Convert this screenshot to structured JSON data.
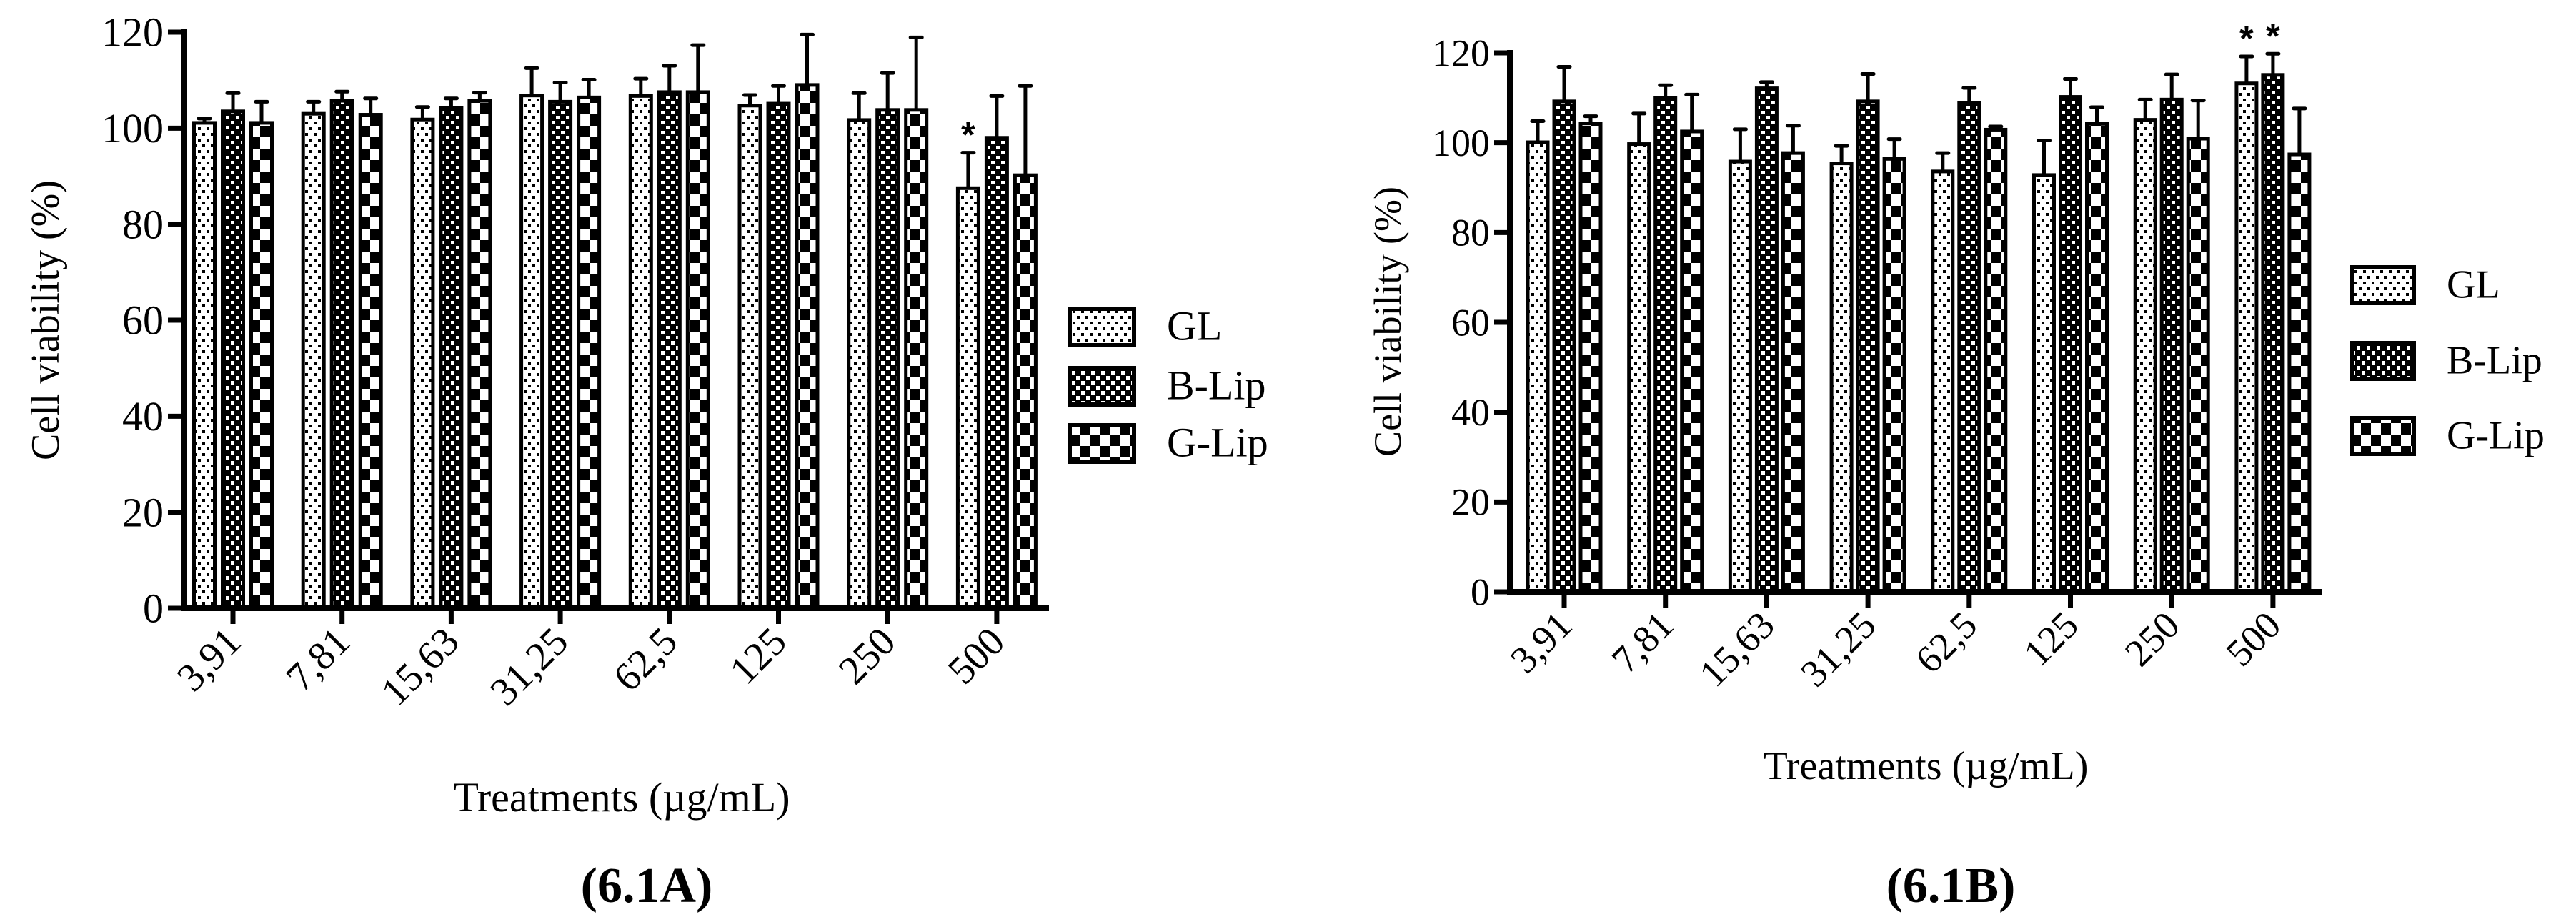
{
  "figure": {
    "panels": [
      "6.1A",
      "6.1B"
    ]
  },
  "chart_data": [
    {
      "id": "6.1A",
      "type": "bar",
      "title": "(6.1A)",
      "xlabel": "Treatments (µg/mL)",
      "ylabel": "Cell viability (%)",
      "ylim": [
        0,
        120
      ],
      "yticks": [
        0,
        20,
        40,
        60,
        80,
        100,
        120
      ],
      "grid": false,
      "legend_position": "right",
      "categories": [
        "3,91",
        "7,81",
        "15,63",
        "31,25",
        "62,5",
        "125",
        "250",
        "500"
      ],
      "series": [
        {
          "name": "GL",
          "pattern": "dots",
          "values": [
            101.1,
            103.0,
            101.8,
            106.8,
            106.7,
            104.7,
            101.7,
            87.5
          ],
          "error_upper": [
            102.0,
            105.5,
            104.4,
            112.5,
            110.3,
            106.9,
            107.3,
            94.9
          ]
        },
        {
          "name": "B-Lip",
          "pattern": "fine-checker",
          "values": [
            103.5,
            105.7,
            104.2,
            105.5,
            107.5,
            105.1,
            103.8,
            98.0
          ],
          "error_upper": [
            107.3,
            107.6,
            106.2,
            109.5,
            113.0,
            108.8,
            111.5,
            106.7
          ]
        },
        {
          "name": "G-Lip",
          "pattern": "coarse-checker",
          "values": [
            101.1,
            102.8,
            105.7,
            106.4,
            107.5,
            109.0,
            103.8,
            90.2
          ],
          "error_upper": [
            105.5,
            106.2,
            107.4,
            110.1,
            117.3,
            119.5,
            118.9,
            108.8
          ]
        }
      ],
      "annotations": [
        {
          "text": "*",
          "category": "500",
          "series": "GL"
        }
      ]
    },
    {
      "id": "6.1B",
      "type": "bar",
      "title": "(6.1B)",
      "xlabel": "Treatments (µg/mL)",
      "ylabel": "Cell viability (%)",
      "ylim": [
        0,
        120
      ],
      "yticks": [
        0,
        20,
        40,
        60,
        80,
        100,
        120
      ],
      "grid": false,
      "legend_position": "right",
      "categories": [
        "3,91",
        "7,81",
        "15,63",
        "31,25",
        "62,5",
        "125",
        "250",
        "500"
      ],
      "series": [
        {
          "name": "GL",
          "pattern": "dots",
          "values": [
            100.1,
            99.7,
            95.8,
            95.4,
            93.6,
            92.8,
            105.1,
            113.2
          ],
          "error_upper": [
            104.8,
            106.5,
            103.0,
            99.3,
            97.7,
            100.5,
            109.6,
            119.2
          ]
        },
        {
          "name": "B-Lip",
          "pattern": "fine-checker",
          "values": [
            109.2,
            109.9,
            112.1,
            109.2,
            108.9,
            110.2,
            109.6,
            115.1
          ],
          "error_upper": [
            116.9,
            112.8,
            113.5,
            115.3,
            112.2,
            114.2,
            115.2,
            119.8
          ]
        },
        {
          "name": "G-Lip",
          "pattern": "coarse-checker",
          "values": [
            104.3,
            102.5,
            97.7,
            96.4,
            102.9,
            104.2,
            100.9,
            97.4
          ],
          "error_upper": [
            105.9,
            110.7,
            103.8,
            100.8,
            103.6,
            107.9,
            109.4,
            107.6
          ]
        }
      ],
      "annotations": [
        {
          "text": "*",
          "category": "500",
          "series": "GL"
        },
        {
          "text": "*",
          "category": "500",
          "series": "B-Lip"
        }
      ]
    }
  ]
}
